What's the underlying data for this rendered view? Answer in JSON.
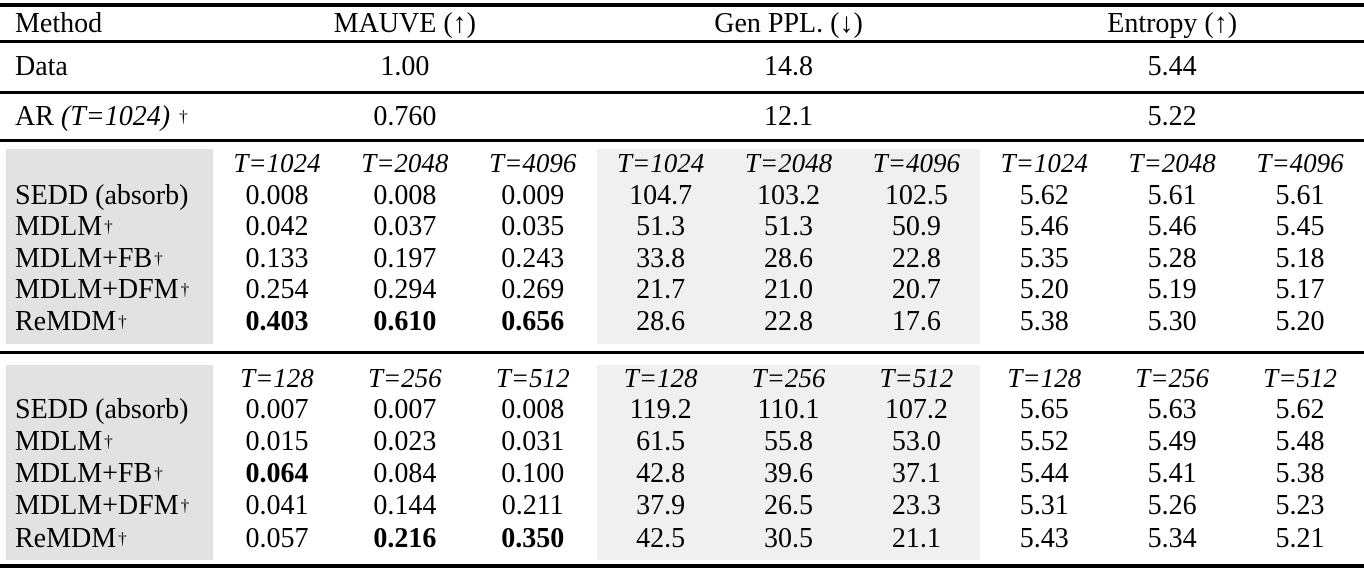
{
  "table": {
    "colors": {
      "method_block_bg": "#e2e2e2",
      "genppl_block_bg": "#f0f0f0",
      "rule_color": "#000000",
      "text_color": "#000000"
    },
    "header": {
      "method": "Method",
      "mauve": "MAUVE (↑)",
      "genppl": "Gen PPL. (↓)",
      "entropy": "Entropy (↑)"
    },
    "data_row": {
      "label": "Data",
      "mauve": "1.00",
      "genppl": "14.8",
      "entropy": "5.44"
    },
    "ar_row": {
      "label_prefix": "AR ",
      "label_italic": "(T=1024)",
      "dagger": "†",
      "mauve": "0.760",
      "genppl": "12.1",
      "entropy": "5.22"
    },
    "sections": [
      {
        "t_labels": [
          "T=1024",
          "T=2048",
          "T=4096",
          "T=1024",
          "T=2048",
          "T=4096",
          "T=1024",
          "T=2048",
          "T=4096"
        ],
        "rows": [
          {
            "method": "SEDD (absorb)",
            "dagger": "",
            "values": [
              "0.008",
              "0.008",
              "0.009",
              "104.7",
              "103.2",
              "102.5",
              "5.62",
              "5.61",
              "5.61"
            ],
            "bold": [
              0,
              0,
              0,
              0,
              0,
              0,
              0,
              0,
              0
            ]
          },
          {
            "method": "MDLM",
            "dagger": "†",
            "values": [
              "0.042",
              "0.037",
              "0.035",
              "51.3",
              "51.3",
              "50.9",
              "5.46",
              "5.46",
              "5.45"
            ],
            "bold": [
              0,
              0,
              0,
              0,
              0,
              0,
              0,
              0,
              0
            ]
          },
          {
            "method": "MDLM+FB",
            "dagger": "†",
            "values": [
              "0.133",
              "0.197",
              "0.243",
              "33.8",
              "28.6",
              "22.8",
              "5.35",
              "5.28",
              "5.18"
            ],
            "bold": [
              0,
              0,
              0,
              0,
              0,
              0,
              0,
              0,
              0
            ]
          },
          {
            "method": "MDLM+DFM",
            "dagger": "†",
            "values": [
              "0.254",
              "0.294",
              "0.269",
              "21.7",
              "21.0",
              "20.7",
              "5.20",
              "5.19",
              "5.17"
            ],
            "bold": [
              0,
              0,
              0,
              0,
              0,
              0,
              0,
              0,
              0
            ]
          },
          {
            "method": "ReMDM",
            "dagger": "†",
            "values": [
              "0.403",
              "0.610",
              "0.656",
              "28.6",
              "22.8",
              "17.6",
              "5.38",
              "5.30",
              "5.20"
            ],
            "bold": [
              1,
              1,
              1,
              0,
              0,
              0,
              0,
              0,
              0
            ]
          }
        ]
      },
      {
        "t_labels": [
          "T=128",
          "T=256",
          "T=512",
          "T=128",
          "T=256",
          "T=512",
          "T=128",
          "T=256",
          "T=512"
        ],
        "rows": [
          {
            "method": "SEDD (absorb)",
            "dagger": "",
            "values": [
              "0.007",
              "0.007",
              "0.008",
              "119.2",
              "110.1",
              "107.2",
              "5.65",
              "5.63",
              "5.62"
            ],
            "bold": [
              0,
              0,
              0,
              0,
              0,
              0,
              0,
              0,
              0
            ]
          },
          {
            "method": "MDLM",
            "dagger": "†",
            "values": [
              "0.015",
              "0.023",
              "0.031",
              "61.5",
              "55.8",
              "53.0",
              "5.52",
              "5.49",
              "5.48"
            ],
            "bold": [
              0,
              0,
              0,
              0,
              0,
              0,
              0,
              0,
              0
            ]
          },
          {
            "method": "MDLM+FB",
            "dagger": "†",
            "values": [
              "0.064",
              "0.084",
              "0.100",
              "42.8",
              "39.6",
              "37.1",
              "5.44",
              "5.41",
              "5.38"
            ],
            "bold": [
              1,
              0,
              0,
              0,
              0,
              0,
              0,
              0,
              0
            ]
          },
          {
            "method": "MDLM+DFM",
            "dagger": "†",
            "values": [
              "0.041",
              "0.144",
              "0.211",
              "37.9",
              "26.5",
              "23.3",
              "5.31",
              "5.26",
              "5.23"
            ],
            "bold": [
              0,
              0,
              0,
              0,
              0,
              0,
              0,
              0,
              0
            ]
          },
          {
            "method": "ReMDM",
            "dagger": "†",
            "values": [
              "0.057",
              "0.216",
              "0.350",
              "42.5",
              "30.5",
              "21.1",
              "5.43",
              "5.34",
              "5.21"
            ],
            "bold": [
              0,
              1,
              1,
              0,
              0,
              0,
              0,
              0,
              0
            ]
          }
        ]
      }
    ]
  }
}
